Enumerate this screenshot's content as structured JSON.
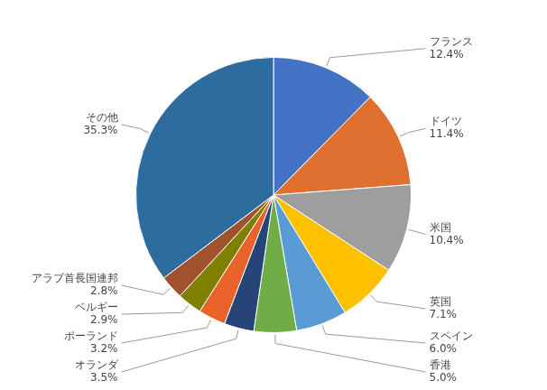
{
  "chart_data": {
    "type": "pie",
    "categories": [
      "フランス",
      "ドイツ",
      "米国",
      "英国",
      "スペイン",
      "香港",
      "オランダ",
      "ポーランド",
      "ベルギー",
      "アラブ首長国連邦",
      "その他"
    ],
    "values": [
      12.4,
      11.4,
      10.4,
      7.1,
      6.0,
      5.0,
      3.5,
      3.2,
      2.9,
      2.8,
      35.3
    ],
    "value_labels": [
      "12.4%",
      "11.4%",
      "10.4%",
      "7.1%",
      "6.0%",
      "5.0%",
      "3.5%",
      "3.2%",
      "2.9%",
      "2.8%",
      "35.3%"
    ],
    "colors": [
      "#4472C4",
      "#E07030",
      "#9E9E9E",
      "#FFC000",
      "#5B9BD5",
      "#70AD47",
      "#264478",
      "#E8622A",
      "#808000",
      "#A0522D",
      "#2E6B9E"
    ],
    "data_labels": true
  }
}
